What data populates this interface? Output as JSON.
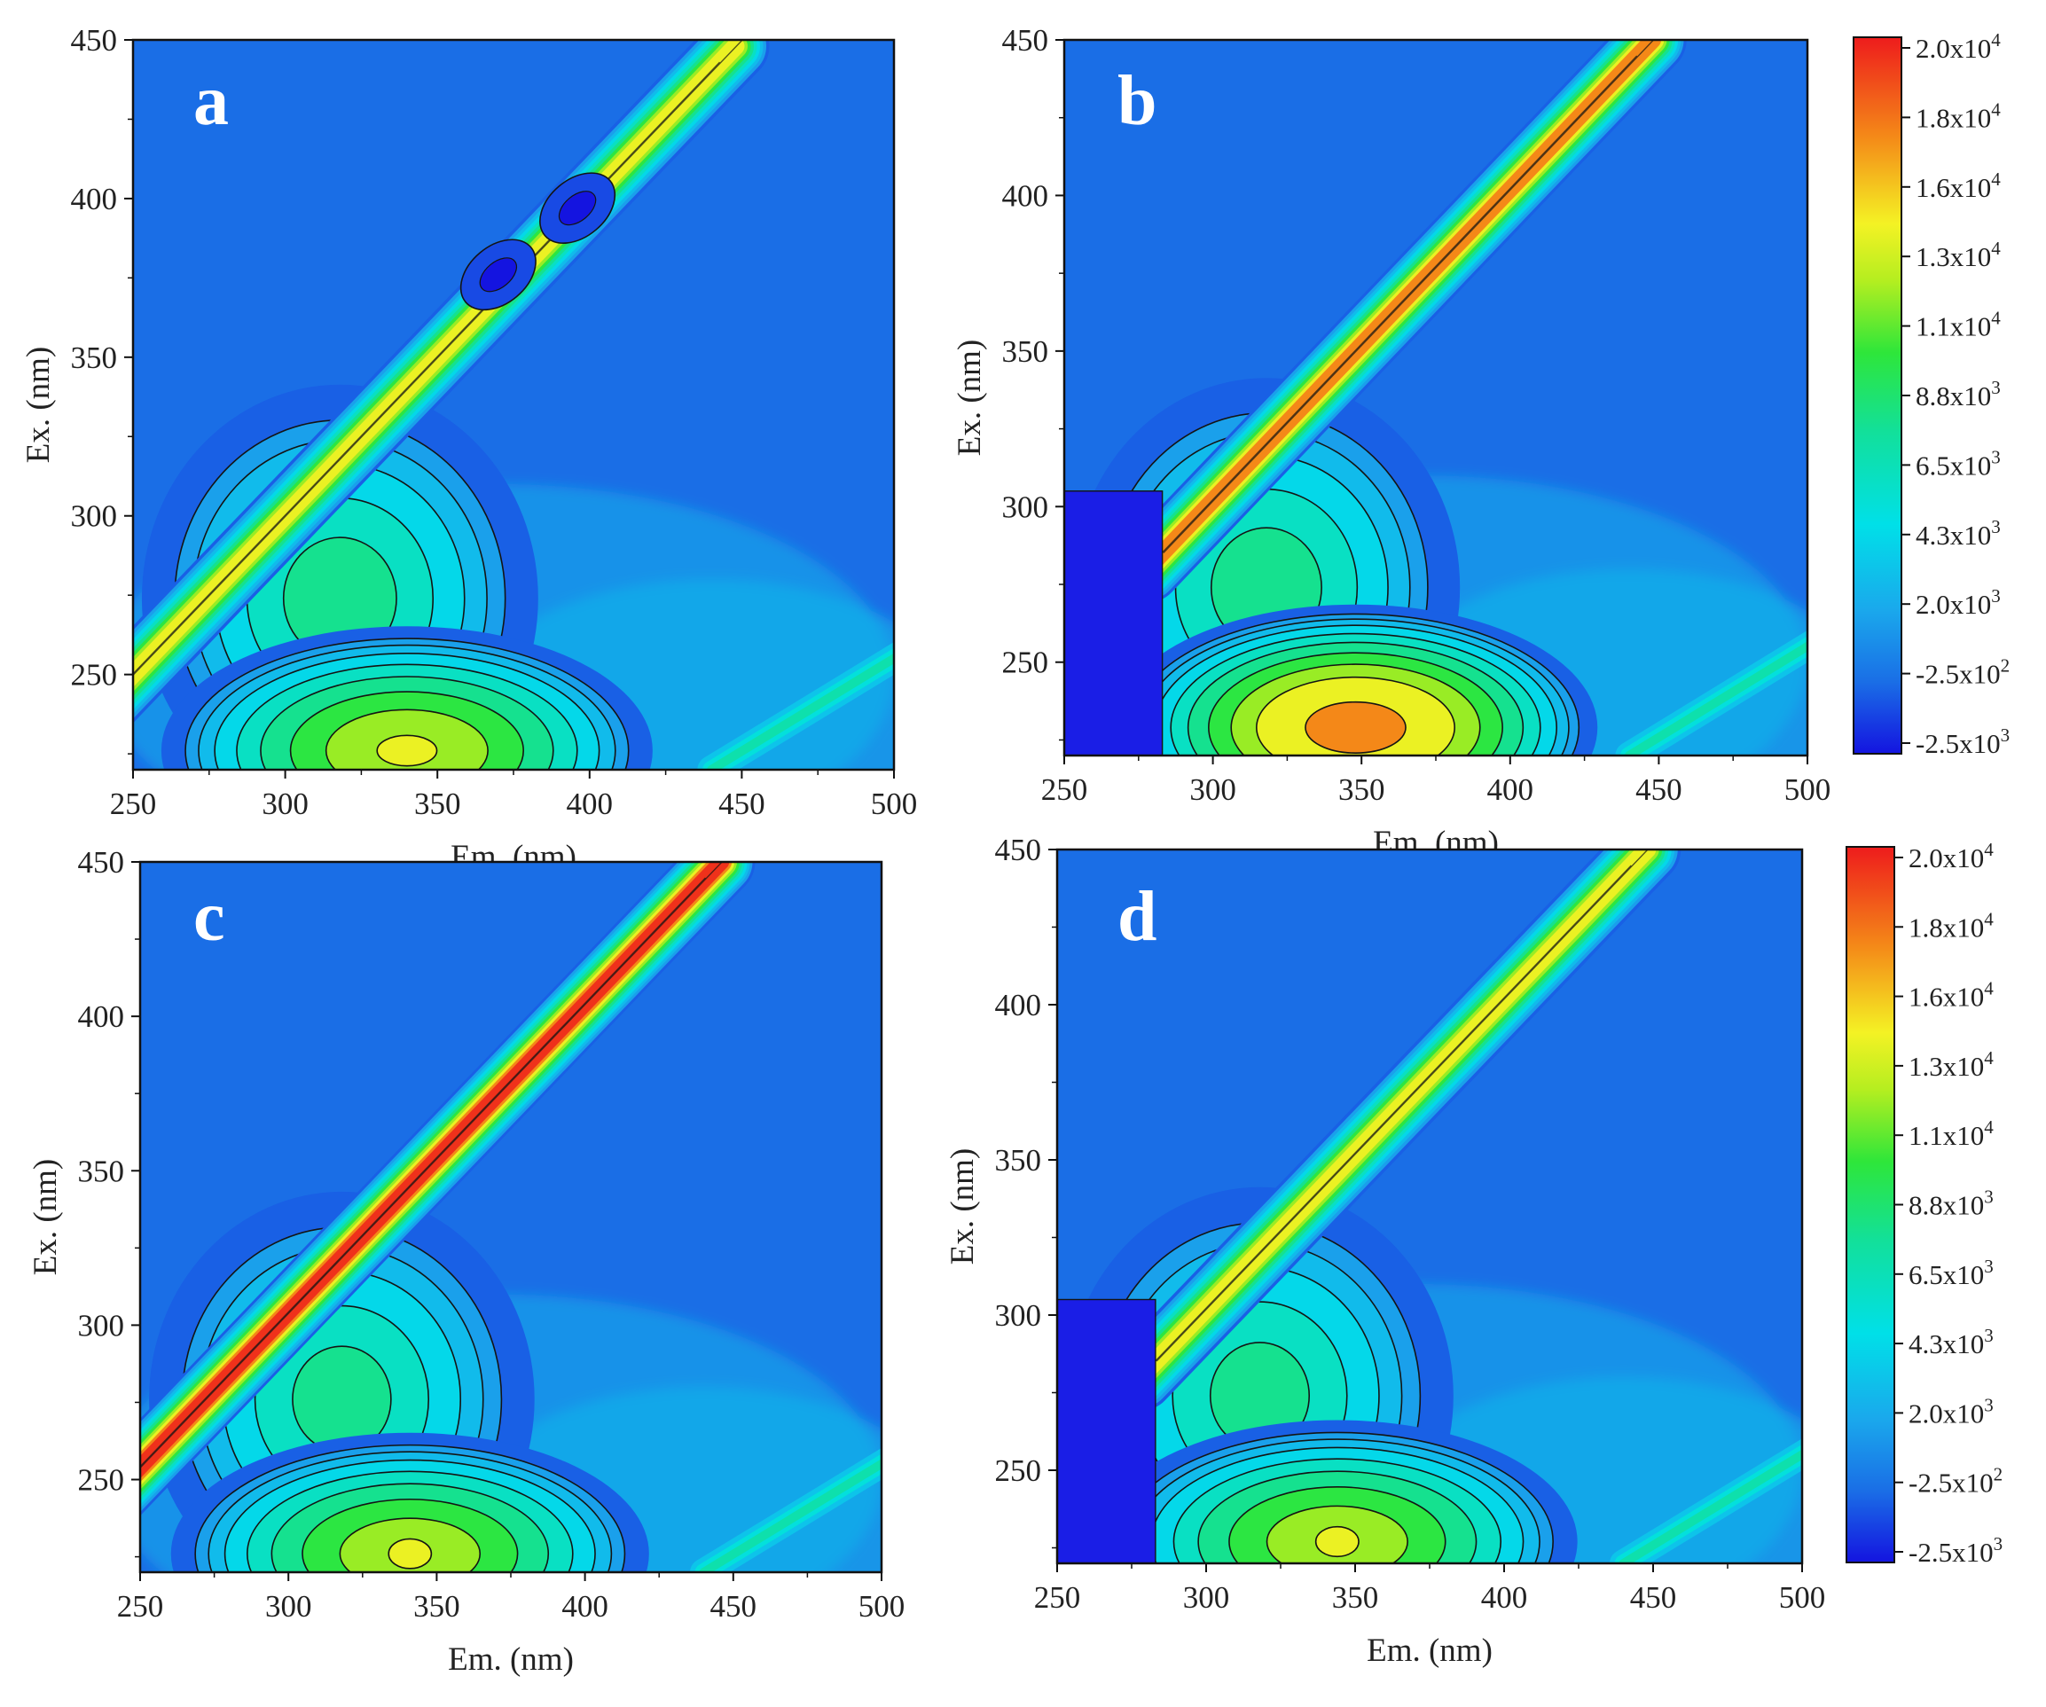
{
  "chart_data": [
    {
      "type": "heatmap",
      "panel_label": "a",
      "xlabel": "Em. (nm)",
      "ylabel": "Ex. (nm)",
      "xlim": [
        250,
        500
      ],
      "ylim": [
        220,
        450
      ],
      "x_ticks": [
        "250",
        "300",
        "350",
        "400",
        "450",
        "500"
      ],
      "y_ticks": [
        "250",
        "300",
        "350",
        "400",
        "450"
      ],
      "scatter_band": {
        "intensity": 15500,
        "y_from": 240,
        "y_to": 448,
        "offset": 0
      },
      "peaks": [
        {
          "em": 318,
          "ex": 274,
          "intensity": 8800
        },
        {
          "em": 340,
          "ex": 226,
          "intensity": 13500
        }
      ],
      "negative_spots": [
        {
          "em": 396,
          "ex": 397,
          "intensity": -2500
        },
        {
          "em": 370,
          "ex": 376,
          "intensity": -1800
        }
      ]
    },
    {
      "type": "heatmap",
      "panel_label": "b",
      "xlabel": "Em. (nm)",
      "ylabel": "Ex. (nm)",
      "xlim": [
        250,
        500
      ],
      "ylim": [
        220,
        450
      ],
      "x_ticks": [
        "250",
        "300",
        "350",
        "400",
        "450",
        "500"
      ],
      "y_ticks": [
        "250",
        "300",
        "350",
        "400",
        "450"
      ],
      "scatter_band": {
        "intensity": 17500,
        "y_from": 280,
        "y_to": 450,
        "offset": -2
      },
      "peaks": [
        {
          "em": 318,
          "ex": 274,
          "intensity": 8800
        },
        {
          "em": 348,
          "ex": 229,
          "intensity": 17500
        }
      ],
      "masked_region": {
        "em_to": 283,
        "ex_to": 305
      }
    },
    {
      "type": "heatmap",
      "panel_label": "c",
      "xlabel": "Em. (nm)",
      "ylabel": "Ex. (nm)",
      "xlim": [
        250,
        500
      ],
      "ylim": [
        220,
        450
      ],
      "x_ticks": [
        "250",
        "300",
        "350",
        "400",
        "450",
        "500"
      ],
      "y_ticks": [
        "250",
        "300",
        "350",
        "400",
        "450"
      ],
      "scatter_band": {
        "intensity": 20000,
        "y_from": 240,
        "y_to": 450,
        "offset": -4
      },
      "peaks": [
        {
          "em": 318,
          "ex": 276,
          "intensity": 8500
        },
        {
          "em": 341,
          "ex": 226,
          "intensity": 13000
        }
      ]
    },
    {
      "type": "heatmap",
      "panel_label": "d",
      "xlabel": "Em. (nm)",
      "ylabel": "Ex. (nm)",
      "xlim": [
        250,
        500
      ],
      "ylim": [
        220,
        450
      ],
      "x_ticks": [
        "250",
        "300",
        "350",
        "400",
        "450",
        "500"
      ],
      "y_ticks": [
        "250",
        "300",
        "350",
        "400",
        "450"
      ],
      "scatter_band": {
        "intensity": 14000,
        "y_from": 280,
        "y_to": 450,
        "offset": -2
      },
      "peaks": [
        {
          "em": 318,
          "ex": 274,
          "intensity": 8500
        },
        {
          "em": 344,
          "ex": 227,
          "intensity": 13000
        }
      ],
      "masked_region": {
        "em_to": 283,
        "ex_to": 305
      }
    }
  ],
  "colorbar": {
    "min": -2500,
    "max": 20000,
    "labels": [
      {
        "mantissa": "2.0x10",
        "exp": "4"
      },
      {
        "mantissa": "1.8x10",
        "exp": "4"
      },
      {
        "mantissa": "1.6x10",
        "exp": "4"
      },
      {
        "mantissa": "1.3x10",
        "exp": "4"
      },
      {
        "mantissa": "1.1x10",
        "exp": "4"
      },
      {
        "mantissa": "8.8x10",
        "exp": "3"
      },
      {
        "mantissa": "6.5x10",
        "exp": "3"
      },
      {
        "mantissa": "4.3x10",
        "exp": "3"
      },
      {
        "mantissa": "2.0x10",
        "exp": "3"
      },
      {
        "mantissa": "-2.5x10",
        "exp": "2"
      },
      {
        "mantissa": "-2.5x10",
        "exp": "3"
      }
    ]
  },
  "colors": {
    "low": "#1a1ee6",
    "background": "#1a6ee6",
    "mid": "#00e0e8",
    "green": "#2ee63a",
    "yellow": "#f4f224",
    "orange": "#f48a18",
    "high": "#ee1c1c",
    "contour": "#141414"
  }
}
